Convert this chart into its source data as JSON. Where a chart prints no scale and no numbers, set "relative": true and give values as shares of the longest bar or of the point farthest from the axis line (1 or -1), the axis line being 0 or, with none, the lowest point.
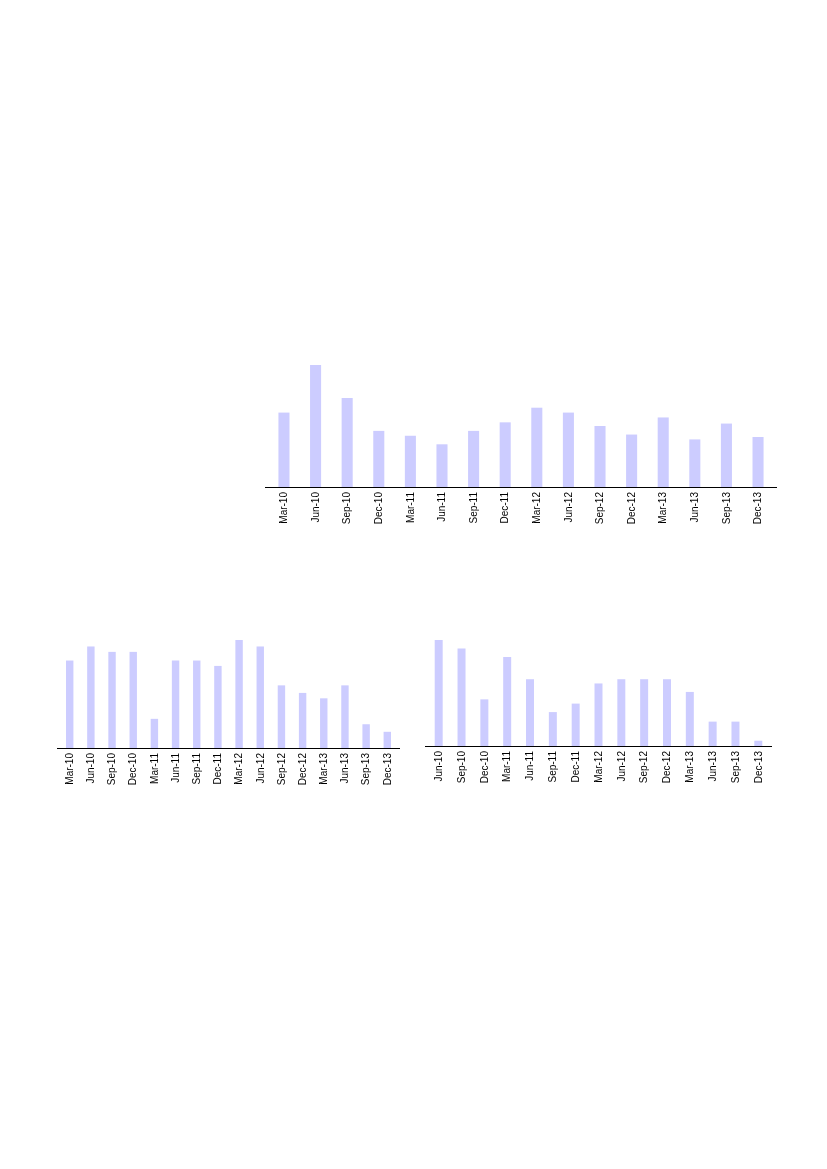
{
  "chart_data": [
    {
      "type": "bar",
      "relative": true,
      "color": "#ccccff",
      "categories": [
        "Mar-10",
        "Jun-10",
        "Sep-10",
        "Dec-10",
        "Mar-11",
        "Jun-11",
        "Sep-11",
        "Dec-11",
        "Mar-12",
        "Jun-12",
        "Sep-12",
        "Dec-12",
        "Mar-13",
        "Jun-13",
        "Sep-13",
        "Dec-13"
      ],
      "values": [
        0.61,
        1,
        0.73,
        0.46,
        0.42,
        0.35,
        0.46,
        0.53,
        0.65,
        0.61,
        0.5,
        0.43,
        0.57,
        0.39,
        0.52,
        0.41
      ]
    },
    {
      "type": "bar",
      "relative": true,
      "color": "#ccccff",
      "categories": [
        "Mar-10",
        "Jun-10",
        "Sep-10",
        "Dec-10",
        "Mar-11",
        "Jun-11",
        "Sep-11",
        "Dec-11",
        "Mar-12",
        "Jun-12",
        "Sep-12",
        "Dec-12",
        "Mar-13",
        "Jun-13",
        "Sep-13",
        "Dec-13"
      ],
      "values": [
        0.81,
        0.94,
        0.89,
        0.89,
        0.27,
        0.81,
        0.81,
        0.76,
        1,
        0.94,
        0.58,
        0.51,
        0.46,
        0.58,
        0.22,
        0.15
      ]
    },
    {
      "type": "bar",
      "relative": true,
      "color": "#ccccff",
      "categories": [
        "Jun-10",
        "Sep-10",
        "Dec-10",
        "Mar-11",
        "Jun-11",
        "Sep-11",
        "Dec-11",
        "Mar-12",
        "Jun-12",
        "Sep-12",
        "Dec-12",
        "Mar-13",
        "Jun-13",
        "Sep-13",
        "Dec-13"
      ],
      "values": [
        1,
        0.92,
        0.44,
        0.84,
        0.63,
        0.32,
        0.4,
        0.59,
        0.63,
        0.63,
        0.63,
        0.51,
        0.23,
        0.23,
        0.05
      ]
    }
  ]
}
